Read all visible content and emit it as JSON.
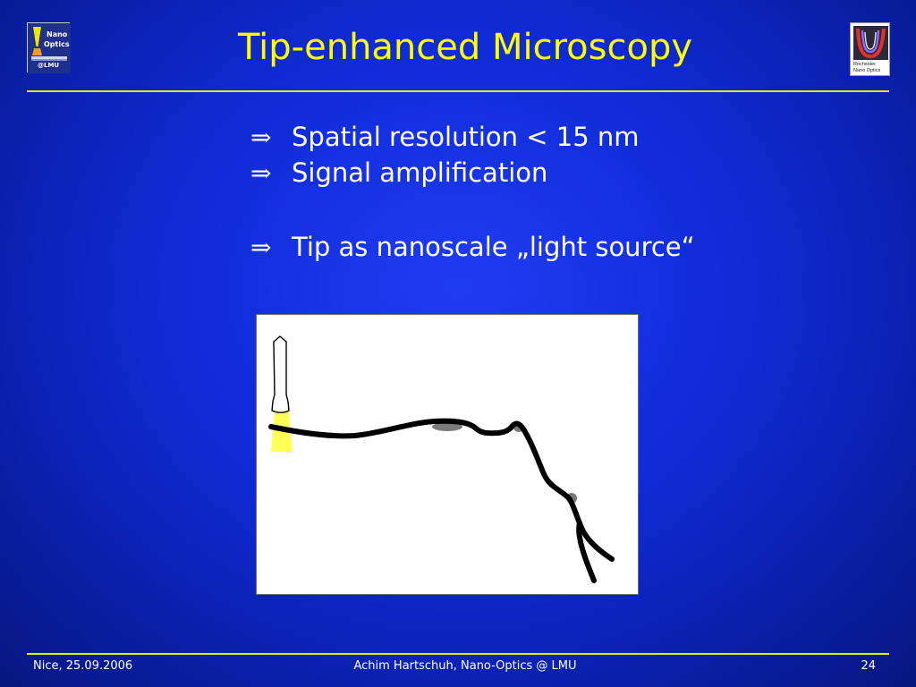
{
  "header": {
    "title": "Tip-enhanced Microscopy",
    "left_logo": {
      "icon": "nano-optics-lmu-logo",
      "lines": [
        "Nano",
        "Optics",
        "@LMU"
      ]
    },
    "right_logo": {
      "icon": "rochester-nano-optics-logo",
      "lines": [
        "Rochester",
        "Nano Optics"
      ]
    }
  },
  "bullets": [
    {
      "symbol": "⇒",
      "text": "Spatial resolution < 15 nm"
    },
    {
      "symbol": "⇒",
      "text": "Signal amplification"
    },
    {
      "symbol": "⇒",
      "text": "Tip as nanoscale „light source“"
    }
  ],
  "diagram": {
    "icon": "tip-scanning-nanotube-illustration",
    "colors": {
      "tip": "#ffffff",
      "light": "#ffff55",
      "nanotube": "#000000",
      "shadow": "#7a7a7a"
    }
  },
  "footer": {
    "left": "Nice, 25.09.2006",
    "center": "Achim Hartschuh, Nano-Optics @ LMU",
    "page": "24"
  },
  "colors": {
    "title": "#ffff00",
    "rule": "#e8e800",
    "text": "#ffffff",
    "background": "#1232d8"
  }
}
